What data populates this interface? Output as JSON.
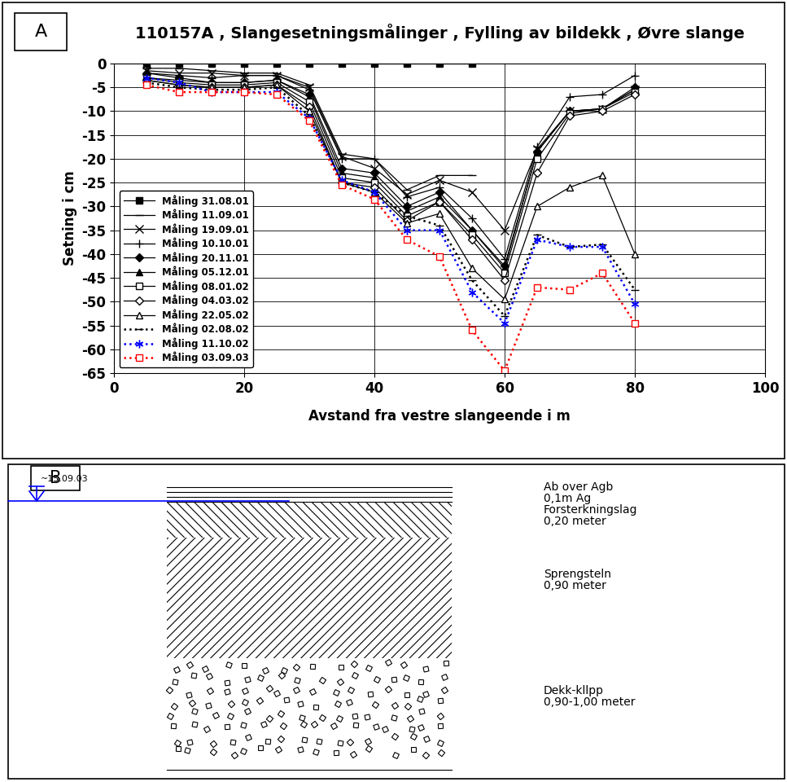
{
  "chart_data": {
    "type": "line",
    "title": "110157A , Slangesetningsmålinger , Fylling av bildekk , Øvre slange",
    "x_label": "Avstand fra vestre slangeende i m",
    "y_label": "Setning i cm",
    "x": [
      5,
      10,
      15,
      20,
      25,
      30,
      35,
      40,
      45,
      50,
      55,
      60,
      65,
      70,
      75,
      80
    ],
    "series": [
      {
        "name": "Måling 31.08.01",
        "color": "#000000",
        "marker": "square",
        "line_style": "solid",
        "values": [
          0,
          0,
          0,
          0,
          0,
          0,
          0,
          0,
          0,
          0,
          0,
          null,
          null,
          null,
          null,
          null
        ]
      },
      {
        "name": "Måling 11.09.01",
        "color": "#000000",
        "marker": "dash",
        "line_style": "solid",
        "values": [
          -1,
          -1,
          -1.5,
          -2,
          -2,
          -4.5,
          -19,
          -20,
          -26.5,
          -23.5,
          -23.5,
          null,
          null,
          null,
          null,
          null
        ]
      },
      {
        "name": "Måling 19.09.01",
        "color": "#000000",
        "marker": "x",
        "line_style": "solid",
        "values": [
          -1.5,
          -2,
          -2,
          -2.5,
          -2.5,
          -5,
          -19.5,
          -22,
          -27.5,
          -24.5,
          -27,
          -35,
          -18,
          -10,
          -9.5,
          -5.5
        ]
      },
      {
        "name": "Måling 10.10.01",
        "color": "#000000",
        "marker": "plus",
        "line_style": "solid",
        "values": [
          -2,
          -2.5,
          -3,
          -2.5,
          -2.5,
          -5.5,
          -20,
          -20,
          -28,
          -26,
          -32.5,
          -41,
          -17.5,
          -7,
          -6.5,
          -2.5
        ]
      },
      {
        "name": "Måling 20.11.01",
        "color": "#000000",
        "marker": "diamond",
        "line_style": "solid",
        "values": [
          -2,
          -3,
          -4,
          -4,
          -3.5,
          -6.5,
          -22,
          -23,
          -30,
          -27,
          -35,
          -42.5,
          -18.5,
          -10,
          -9.5,
          -5
        ]
      },
      {
        "name": "Måling 05.12.01",
        "color": "#000000",
        "marker": "triangle",
        "line_style": "solid",
        "values": [
          -3,
          -3.5,
          -4,
          -4,
          -3.5,
          -7,
          -23,
          -24,
          -31,
          -28,
          -35,
          -43,
          -18.5,
          -10,
          -9.5,
          -5.5
        ]
      },
      {
        "name": "Måling 08.01.02",
        "color": "#000000",
        "marker": "open_square",
        "line_style": "solid",
        "values": [
          -3,
          -4,
          -4.5,
          -4.5,
          -4,
          -8,
          -24,
          -25,
          -32,
          -29,
          -36,
          -44,
          -20,
          -10.5,
          -9.5,
          -6
        ]
      },
      {
        "name": "Måling 04.03.02",
        "color": "#000000",
        "marker": "open_diamond",
        "line_style": "solid",
        "values": [
          -3.5,
          -4.5,
          -5,
          -5,
          -4.5,
          -9,
          -25,
          -26,
          -33,
          -29,
          -37,
          -45.5,
          -23,
          -11,
          -10,
          -6.5
        ]
      },
      {
        "name": "Måling 22.05.02",
        "color": "#000000",
        "marker": "open_triangle",
        "line_style": "solid",
        "values": [
          -3.5,
          -4.5,
          -5,
          -5,
          -4.5,
          -10,
          -25,
          -27,
          -33.5,
          -31.5,
          -43,
          -49.5,
          -30,
          -26,
          -23.5,
          -40
        ]
      },
      {
        "name": "Måling 02.08.02",
        "color": "#000000",
        "marker": "dash",
        "line_style": "dotted",
        "values": [
          -4,
          -5,
          -5.5,
          -5.5,
          -5,
          -11,
          -25,
          -27,
          -32,
          -34,
          -45.5,
          -53,
          -36,
          -38.5,
          -38,
          -47.5
        ]
      },
      {
        "name": "Måling 11.10.02",
        "color": "#0000ff",
        "marker": "asterisk",
        "line_style": "dotted",
        "values": [
          -3,
          -4,
          -6,
          -6,
          -6,
          -11.5,
          -24.5,
          -27,
          -35,
          -35,
          -48,
          -54.5,
          -37,
          -38.5,
          -38.5,
          -50.5
        ]
      },
      {
        "name": "Måling 03.09.03",
        "color": "#ff0000",
        "marker": "open_square",
        "line_style": "dotted",
        "values": [
          -4.5,
          -6,
          -6,
          -6,
          -6.5,
          -12,
          -25.5,
          -28.5,
          -37,
          -40.5,
          -56,
          -64.5,
          -47,
          -47.5,
          -44,
          -54.5
        ]
      }
    ],
    "xlim": [
      0,
      100
    ],
    "xticks": [
      0,
      20,
      40,
      60,
      80,
      100
    ],
    "ylim": [
      -65,
      0
    ],
    "yticks": [
      0,
      -5,
      -10,
      -15,
      -20,
      -25,
      -30,
      -35,
      -40,
      -45,
      -50,
      -55,
      -60,
      -65
    ],
    "grid": true,
    "legend": "lower left"
  },
  "chart_panel_label": "A",
  "diagram": {
    "panel_label": "B",
    "water_level_date": "~15.09.03",
    "layers": [
      {
        "lines": [
          "Ab over Agb",
          "0,1m Ag",
          "Forsterkningslag",
          "0,20 meter"
        ]
      },
      {
        "lines": [
          "Sprengsteln",
          "0,90 meter"
        ]
      },
      {
        "lines": [
          "Dekk-kllpp",
          "0,90-1,00 meter"
        ]
      }
    ]
  }
}
